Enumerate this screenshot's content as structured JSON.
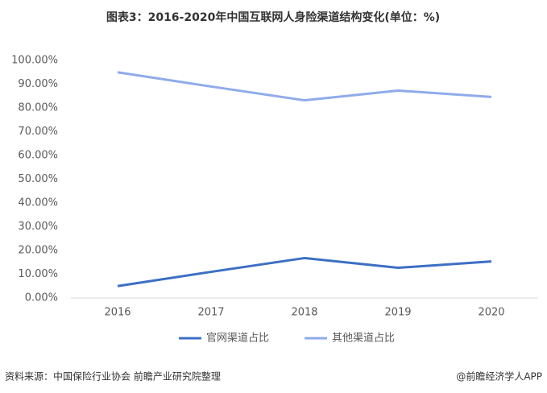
{
  "chart_data": {
    "type": "line",
    "title": "图表3：2016-2020年中国互联网人身险渠道结构变化(单位：%)",
    "categories": [
      "2016",
      "2017",
      "2018",
      "2019",
      "2020"
    ],
    "series": [
      {
        "name": "官网渠道占比",
        "color": "#3d6fc4",
        "values": [
          5.0,
          11.0,
          16.8,
          12.7,
          15.4
        ]
      },
      {
        "name": "其他渠道占比",
        "color": "#8fabeb",
        "values": [
          95.0,
          89.0,
          83.2,
          87.3,
          84.6
        ]
      }
    ],
    "ylim": [
      0,
      100
    ],
    "yticks": [
      {
        "value": 0,
        "label": "0.00%"
      },
      {
        "value": 10,
        "label": "10.00%"
      },
      {
        "value": 20,
        "label": "20.00%"
      },
      {
        "value": 30,
        "label": "30.00%"
      },
      {
        "value": 40,
        "label": "40.00%"
      },
      {
        "value": 50,
        "label": "50.00%"
      },
      {
        "value": 60,
        "label": "60.00%"
      },
      {
        "value": 70,
        "label": "70.00%"
      },
      {
        "value": 80,
        "label": "80.00%"
      },
      {
        "value": 90,
        "label": "90.00%"
      },
      {
        "value": 100,
        "label": "100.00%"
      }
    ],
    "grid": false,
    "legend": "bottom",
    "source": "资料来源：中国保险行业协会 前瞻产业研究院整理",
    "credit": "@前瞻经济学人APP"
  }
}
